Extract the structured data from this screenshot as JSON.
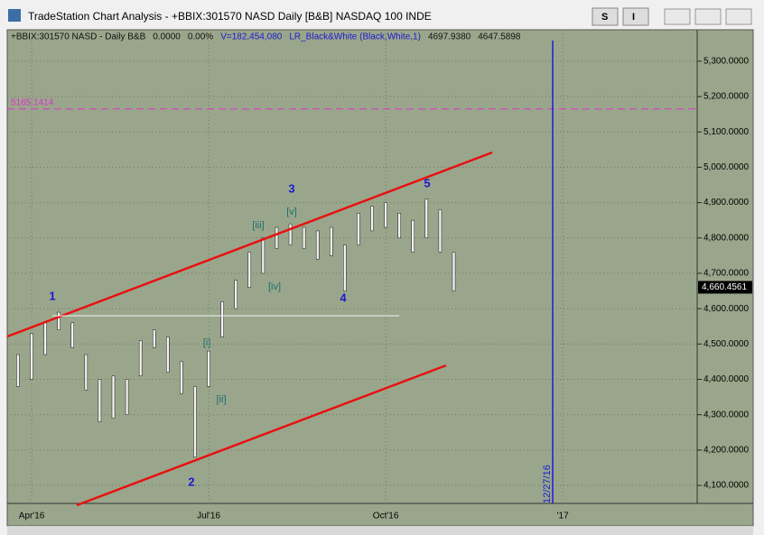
{
  "window": {
    "title": "TradeStation Chart Analysis - +BBIX:301570 NASD Daily [B&B] NASDAQ 100 INDE",
    "buttons": [
      "S",
      "I"
    ]
  },
  "info_line": [
    "+BBIX:301570 NASD - Daily  B&B",
    "0.0000",
    "0.00%",
    "V=182,454,080",
    "LR_Black&White (Black,White,1)",
    "4697.9380",
    "4647.5898"
  ],
  "chart_data": {
    "type": "range-bar",
    "color": "#f2f2f2",
    "categories": [
      null,
      "Apr'16",
      null,
      null,
      null,
      null,
      null,
      null,
      null,
      null,
      null,
      null,
      null,
      null,
      "Jul'16",
      null,
      null,
      null,
      null,
      null,
      null,
      null,
      null,
      null,
      null,
      null,
      null,
      "Oct'16",
      null,
      null,
      null,
      null,
      null,
      null,
      null,
      null,
      null,
      null,
      null,
      null,
      "'17",
      null,
      null,
      null,
      null,
      null,
      null,
      null,
      null,
      null
    ],
    "high": [
      4470,
      4530,
      4560,
      4590,
      4560,
      4470,
      4400,
      4410,
      4400,
      4510,
      4540,
      4520,
      4450,
      4380,
      4480,
      4620,
      4680,
      4760,
      4800,
      4830,
      4840,
      4830,
      4820,
      4830,
      4780,
      4870,
      4890,
      4900,
      4870,
      4850,
      4910,
      4880,
      4760,
      null,
      null,
      null,
      null,
      null,
      null,
      null,
      null,
      null,
      null,
      null,
      null,
      null,
      null,
      null,
      null,
      null
    ],
    "low": [
      4380,
      4400,
      4470,
      4540,
      4490,
      4370,
      4280,
      4290,
      4300,
      4410,
      4490,
      4420,
      4360,
      4180,
      4380,
      4520,
      4600,
      4660,
      4700,
      4770,
      4780,
      4770,
      4740,
      4750,
      4650,
      4780,
      4820,
      4830,
      4800,
      4760,
      4800,
      4760,
      4650,
      null,
      null,
      null,
      null,
      null,
      null,
      null,
      null,
      null,
      null,
      null,
      null,
      null,
      null,
      null,
      null,
      null
    ],
    "ylim": [
      4049,
      5389
    ],
    "yticks": [
      {
        "value": 4100,
        "label": "4,100.0000"
      },
      {
        "value": 4200,
        "label": "4,200.0000"
      },
      {
        "value": 4300,
        "label": "4,300.0000"
      },
      {
        "value": 4400,
        "label": "4,400.0000"
      },
      {
        "value": 4500,
        "label": "4,500.0000"
      },
      {
        "value": 4600,
        "label": "4,600.0000"
      },
      {
        "value": 4700,
        "label": "4,700.0000"
      },
      {
        "value": 4800,
        "label": "4,800.0000"
      },
      {
        "value": 4900,
        "label": "4,900.0000"
      },
      {
        "value": 5000,
        "label": "5,000.0000"
      },
      {
        "value": 5100,
        "label": "5,100.0000"
      },
      {
        "value": 5200,
        "label": "5,200.0000"
      },
      {
        "value": 5300,
        "label": "5,300.0000"
      }
    ],
    "last_price": {
      "value": 4660.4561,
      "label": "4,660.4561"
    },
    "level_line": 5165.1414,
    "date_marker": "12/27/16",
    "wave_labels": [
      "1",
      "2",
      "3",
      "4",
      "5"
    ],
    "subwave_labels": [
      "[i]",
      "[ii]",
      "[iii]",
      "[iv]",
      "[v]"
    ],
    "grid": true
  }
}
